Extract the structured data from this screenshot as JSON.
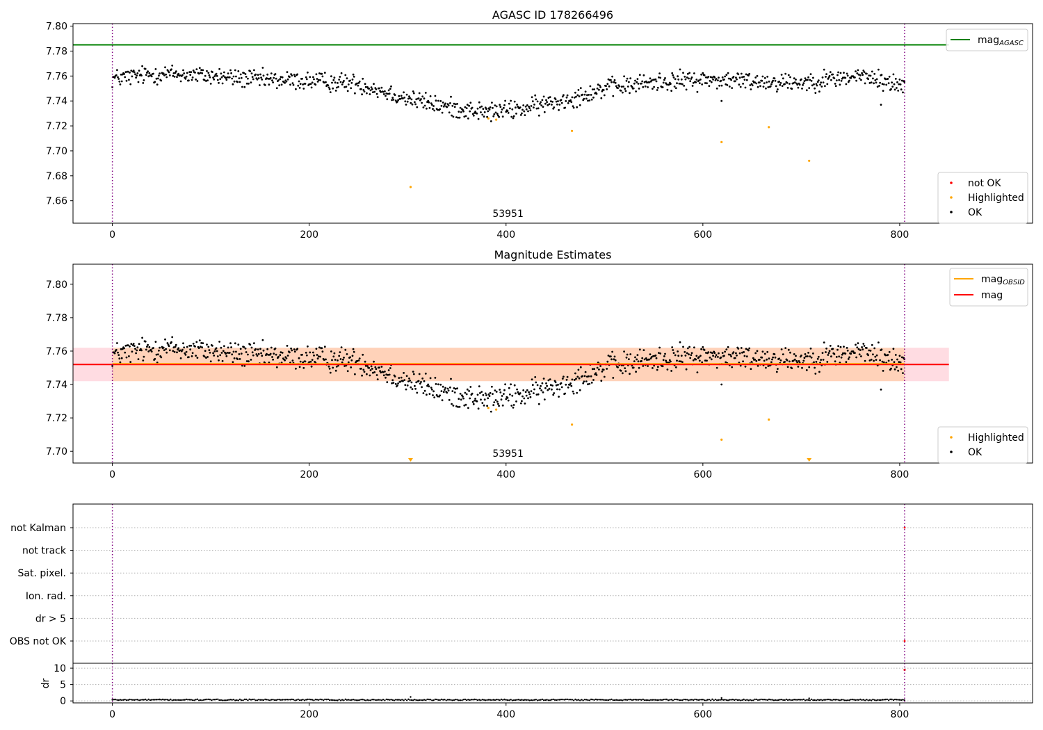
{
  "chart_data": [
    {
      "type": "scatter",
      "title": "AGASC ID 178266496",
      "xlim": [
        -40,
        935
      ],
      "ylim": [
        7.642,
        7.802
      ],
      "x_ticks": [
        0,
        200,
        400,
        600,
        800
      ],
      "y_ticks": [
        7.66,
        7.68,
        7.7,
        7.72,
        7.74,
        7.76,
        7.78,
        7.8
      ],
      "y_decimals": 2,
      "ref_line": {
        "name": "mag_AGASC",
        "y": 7.785,
        "color": "#008000",
        "x_end": 850
      },
      "obs_boundaries": [
        0,
        805
      ],
      "obs_label": {
        "text": "53951",
        "x": 402
      },
      "lines_legend": [
        {
          "label": "mag",
          "sub": "AGASC",
          "color": "#008000"
        }
      ],
      "points_legend": [
        {
          "label": "not OK",
          "color": "#ff0000"
        },
        {
          "label": "Highlighted",
          "color": "#ffa500"
        },
        {
          "label": "OK",
          "color": "#000000"
        }
      ],
      "highlighted": [
        [
          303,
          7.671
        ],
        [
          382,
          7.726
        ],
        [
          390,
          7.725
        ],
        [
          467,
          7.716
        ],
        [
          619,
          7.707
        ],
        [
          667,
          7.719
        ],
        [
          708,
          7.692
        ]
      ],
      "trend_x": [
        0,
        50,
        100,
        150,
        200,
        250,
        300,
        340,
        380,
        420,
        460,
        500,
        550,
        600,
        650,
        700,
        760,
        805
      ],
      "trend_y": [
        7.758,
        7.762,
        7.76,
        7.757,
        7.756,
        7.754,
        7.742,
        7.735,
        7.731,
        7.734,
        7.741,
        7.75,
        7.755,
        7.757,
        7.756,
        7.755,
        7.76,
        7.752
      ]
    },
    {
      "type": "scatter",
      "title": "Magnitude Estimates",
      "xlim": [
        -40,
        935
      ],
      "ylim": [
        7.693,
        7.812
      ],
      "x_ticks": [
        0,
        200,
        400,
        600,
        800
      ],
      "y_ticks": [
        7.7,
        7.72,
        7.74,
        7.76,
        7.78,
        7.8
      ],
      "y_decimals": 2,
      "obs_boundaries": [
        0,
        805
      ],
      "obs_label": {
        "text": "53951",
        "x": 402
      },
      "mean_line": {
        "name": "mag",
        "y": 7.752,
        "color": "#ff0000",
        "x_end": 850
      },
      "obsid_line": {
        "name": "mag_OBSID",
        "y": 7.7525,
        "color": "#ffa500",
        "x_end": 805
      },
      "band": {
        "y0": 7.742,
        "y1": 7.762,
        "x_end": 850
      },
      "lines_legend": [
        {
          "label": "mag",
          "sub": "OBSID",
          "color": "#ffa500"
        },
        {
          "label": "mag",
          "sub": "",
          "color": "#ff0000"
        }
      ],
      "points_legend": [
        {
          "label": "Highlighted",
          "color": "#ffa500"
        },
        {
          "label": "OK",
          "color": "#000000"
        }
      ],
      "highlighted": [
        [
          382,
          7.726
        ],
        [
          390,
          7.725
        ],
        [
          467,
          7.716
        ],
        [
          619,
          7.707
        ],
        [
          667,
          7.719
        ]
      ],
      "clipped_low": [
        303,
        708
      ],
      "trend_x": [
        0,
        50,
        100,
        150,
        200,
        250,
        300,
        340,
        380,
        420,
        460,
        500,
        550,
        600,
        650,
        700,
        760,
        805
      ],
      "trend_y": [
        7.758,
        7.762,
        7.76,
        7.757,
        7.756,
        7.754,
        7.742,
        7.735,
        7.731,
        7.734,
        7.741,
        7.75,
        7.755,
        7.757,
        7.756,
        7.755,
        7.76,
        7.752
      ]
    },
    {
      "type": "scatter",
      "xlim": [
        -40,
        935
      ],
      "categories": [
        "not Kalman",
        "not track",
        "Sat. pixel.",
        "Ion. rad.",
        "dr > 5",
        "OBS not OK"
      ],
      "flag_points": [
        [
          805,
          "not Kalman"
        ],
        [
          805,
          "OBS not OK"
        ]
      ],
      "obs_boundaries": [
        0,
        805
      ]
    },
    {
      "type": "scatter",
      "ylabel": "dr",
      "xlim": [
        -40,
        935
      ],
      "ylim": [
        -0.6,
        11.5
      ],
      "x_ticks": [
        0,
        200,
        400,
        600,
        800
      ],
      "y_ticks": [
        0,
        5,
        10
      ],
      "obs_boundaries": [
        0,
        805
      ],
      "flag_point": [
        805,
        9.5
      ],
      "spikes": [
        [
          303,
          1.2
        ],
        [
          619,
          0.9
        ],
        [
          708,
          0.8
        ]
      ]
    }
  ]
}
